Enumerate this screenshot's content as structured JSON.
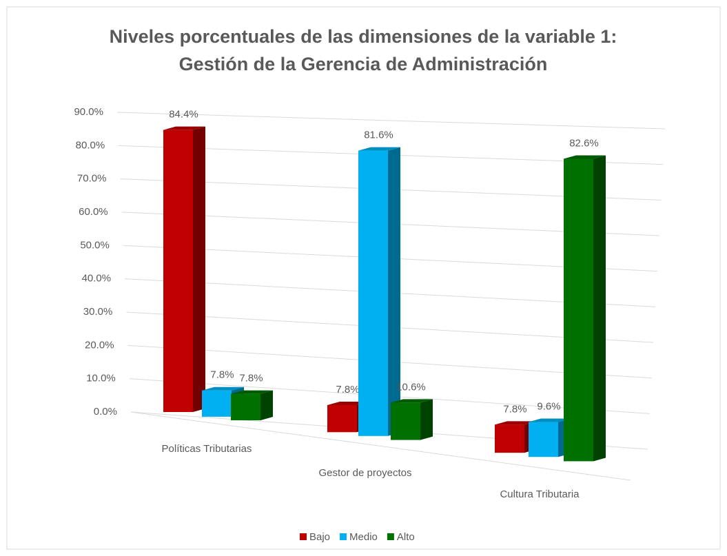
{
  "chart_data": {
    "type": "bar3d",
    "title": [
      "Niveles porcentuales de las dimensiones de la variable 1:",
      "Gestión de la Gerencia de Administración"
    ],
    "categories": [
      "Políticas Tributarias",
      "Gestor de proyectos",
      "Cultura Tributaria"
    ],
    "series": [
      {
        "name": "Bajo",
        "color": "#c00000",
        "values": [
          84.4,
          7.8,
          7.8
        ],
        "value_labels": [
          "84.4%",
          "7.8%",
          "7.8%"
        ]
      },
      {
        "name": "Medio",
        "color": "#00b0f0",
        "values": [
          7.8,
          81.6,
          9.6
        ],
        "value_labels": [
          "7.8%",
          "81.6%",
          "9.6%"
        ]
      },
      {
        "name": "Alto",
        "color": "#007000",
        "values": [
          7.8,
          10.6,
          82.6
        ],
        "value_labels": [
          "7.8%",
          "10.6%",
          "82.6%"
        ]
      }
    ],
    "ylim": [
      0,
      90
    ],
    "yticks": [
      {
        "value": 0,
        "label": "0.0%"
      },
      {
        "value": 10,
        "label": "10.0%"
      },
      {
        "value": 20,
        "label": "20.0%"
      },
      {
        "value": 30,
        "label": "30.0%"
      },
      {
        "value": 40,
        "label": "40.0%"
      },
      {
        "value": 50,
        "label": "50.0%"
      },
      {
        "value": 60,
        "label": "60.0%"
      },
      {
        "value": 70,
        "label": "70.0%"
      },
      {
        "value": 80,
        "label": "80.0%"
      },
      {
        "value": 90,
        "label": "90.0%"
      }
    ],
    "grid": true,
    "legend": "bottom"
  }
}
